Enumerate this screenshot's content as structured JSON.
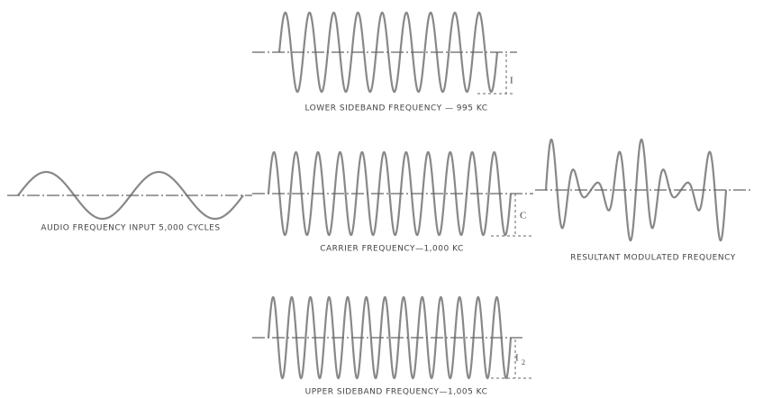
{
  "panels": [
    {
      "caption": "LOWER SIDEBAND FREQUENCY — 995 KC",
      "amplitude_label": "I"
    },
    {
      "caption": "AUDIO FREQUENCY INPUT 5,000 CYCLES"
    },
    {
      "caption": "CARRIER FREQUENCY—1,000 KC",
      "amplitude_label": "C"
    },
    {
      "caption": "RESULTANT MODULATED FREQUENCY"
    },
    {
      "caption": "UPPER SIDEBAND FREQUENCY—1,005 KC",
      "amplitude_label": "I",
      "amplitude_subscript": "2"
    }
  ]
}
